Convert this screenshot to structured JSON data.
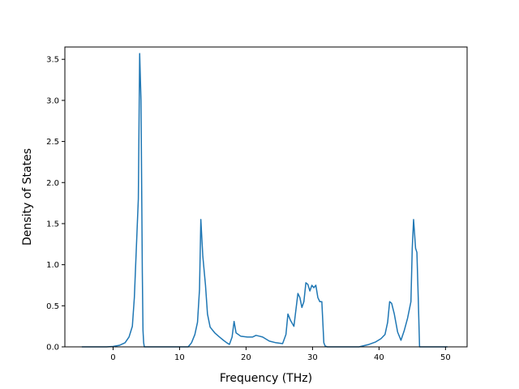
{
  "chart_data": {
    "type": "line",
    "title": "",
    "xlabel": "Frequency (THz)",
    "ylabel": "Density of States",
    "xlim": [
      -7.25,
      53.25
    ],
    "ylim": [
      0,
      3.65
    ],
    "xticks": [
      0,
      10,
      20,
      30,
      40,
      50
    ],
    "xtick_labels": [
      "0",
      "10",
      "20",
      "30",
      "40",
      "50"
    ],
    "yticks": [
      0.0,
      0.5,
      1.0,
      1.5,
      2.0,
      2.5,
      3.0,
      3.5
    ],
    "ytick_labels": [
      "0.0",
      "0.5",
      "1.0",
      "1.5",
      "2.0",
      "2.5",
      "3.0",
      "3.5"
    ],
    "grid": false,
    "line_color": "#1f77b4",
    "series": [
      {
        "x": [
          -4.7,
          -1,
          0,
          1,
          1.8,
          2.4,
          2.9,
          3.2,
          3.5,
          3.8,
          4.0,
          4.2,
          4.4,
          4.5,
          4.6,
          4.7,
          6,
          8,
          10,
          11.3,
          11.8,
          12.3,
          12.7,
          13.0,
          13.2,
          13.5,
          13.9,
          14.2,
          14.6,
          15.3,
          16.0,
          16.6,
          17.1,
          17.5,
          17.9,
          18.2,
          18.5,
          19.2,
          20.2,
          21.0,
          21.5,
          22.0,
          22.5,
          23.5,
          24.5,
          25.5,
          26.0,
          26.3,
          26.7,
          27.2,
          27.5,
          27.8,
          28.1,
          28.4,
          28.7,
          29.0,
          29.3,
          29.6,
          29.9,
          30.2,
          30.5,
          30.8,
          31.1,
          31.4,
          31.7,
          31.9,
          32.2,
          33,
          35,
          37,
          38.5,
          39.5,
          40.3,
          40.9,
          41.3,
          41.6,
          41.9,
          42.3,
          42.8,
          43.3,
          43.8,
          44.3,
          44.8,
          45.0,
          45.2,
          45.5,
          45.7,
          45.9,
          46.1,
          47,
          50.3
        ],
        "y": [
          0,
          0,
          0.005,
          0.02,
          0.05,
          0.12,
          0.25,
          0.6,
          1.2,
          1.8,
          3.57,
          3.0,
          0.9,
          0.2,
          0.05,
          0,
          0,
          0,
          0,
          0,
          0.05,
          0.15,
          0.3,
          0.7,
          1.55,
          1.1,
          0.75,
          0.4,
          0.24,
          0.17,
          0.12,
          0.08,
          0.05,
          0.03,
          0.12,
          0.31,
          0.17,
          0.13,
          0.12,
          0.12,
          0.14,
          0.13,
          0.12,
          0.07,
          0.05,
          0.04,
          0.15,
          0.4,
          0.32,
          0.25,
          0.45,
          0.65,
          0.6,
          0.48,
          0.55,
          0.78,
          0.76,
          0.68,
          0.75,
          0.72,
          0.75,
          0.6,
          0.55,
          0.55,
          0.05,
          0.01,
          0,
          0,
          0,
          0,
          0.03,
          0.06,
          0.1,
          0.15,
          0.3,
          0.55,
          0.53,
          0.4,
          0.18,
          0.08,
          0.2,
          0.35,
          0.55,
          1.2,
          1.55,
          1.2,
          1.15,
          0.6,
          0,
          0,
          0
        ]
      }
    ]
  }
}
